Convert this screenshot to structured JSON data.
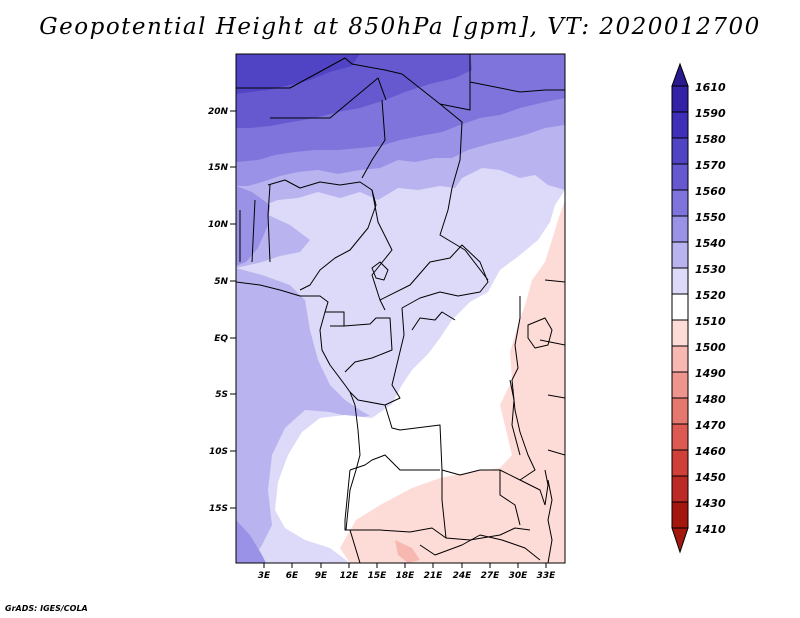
{
  "title": "Geopotential Height at 850hPa [gpm], VT: 2020012700",
  "credit": "GrADS: IGES/COLA",
  "map": {
    "lat_labels": [
      "20N",
      "15N",
      "10N",
      "5N",
      "EQ",
      "5S",
      "10S",
      "15S"
    ],
    "lon_labels": [
      "3E",
      "6E",
      "9E",
      "12E",
      "15E",
      "18E",
      "21E",
      "24E",
      "27E",
      "30E",
      "33E"
    ]
  },
  "colorbar": {
    "levels": [
      "1610",
      "1590",
      "1580",
      "1570",
      "1560",
      "1550",
      "1540",
      "1530",
      "1520",
      "1510",
      "1500",
      "1490",
      "1480",
      "1470",
      "1460",
      "1450",
      "1430",
      "1410"
    ],
    "colors": {
      "top": "#2a1a8f",
      "c1590": "#3322a6",
      "c1580": "#3f2fb8",
      "c1570": "#5144c4",
      "c1560": "#6659d0",
      "c1550": "#7f74dc",
      "c1540": "#9a92e6",
      "c1530": "#b9b4ef",
      "c1520": "#dcdaf8",
      "c1510": "#ffffff",
      "c1500": "#fddcd8",
      "c1490": "#f6b8b1",
      "c1480": "#ee968e",
      "c1470": "#e5776f",
      "c1460": "#dc5a52",
      "c1450": "#cf4038",
      "c1430": "#bb2a24",
      "bottom": "#a3170f"
    }
  },
  "chart_data": {
    "type": "heatmap",
    "title": "Geopotential Height at 850hPa [gpm], VT: 2020012700",
    "variable": "Geopotential Height",
    "units": "gpm",
    "level": "850hPa",
    "valid_time": "2020012700",
    "lon_range": [
      0,
      35
    ],
    "lat_range": [
      -20,
      25
    ],
    "legend_levels": [
      1610,
      1590,
      1580,
      1570,
      1560,
      1550,
      1540,
      1530,
      1520,
      1510,
      1500,
      1490,
      1480,
      1470,
      1460,
      1450,
      1430,
      1410
    ]
  }
}
